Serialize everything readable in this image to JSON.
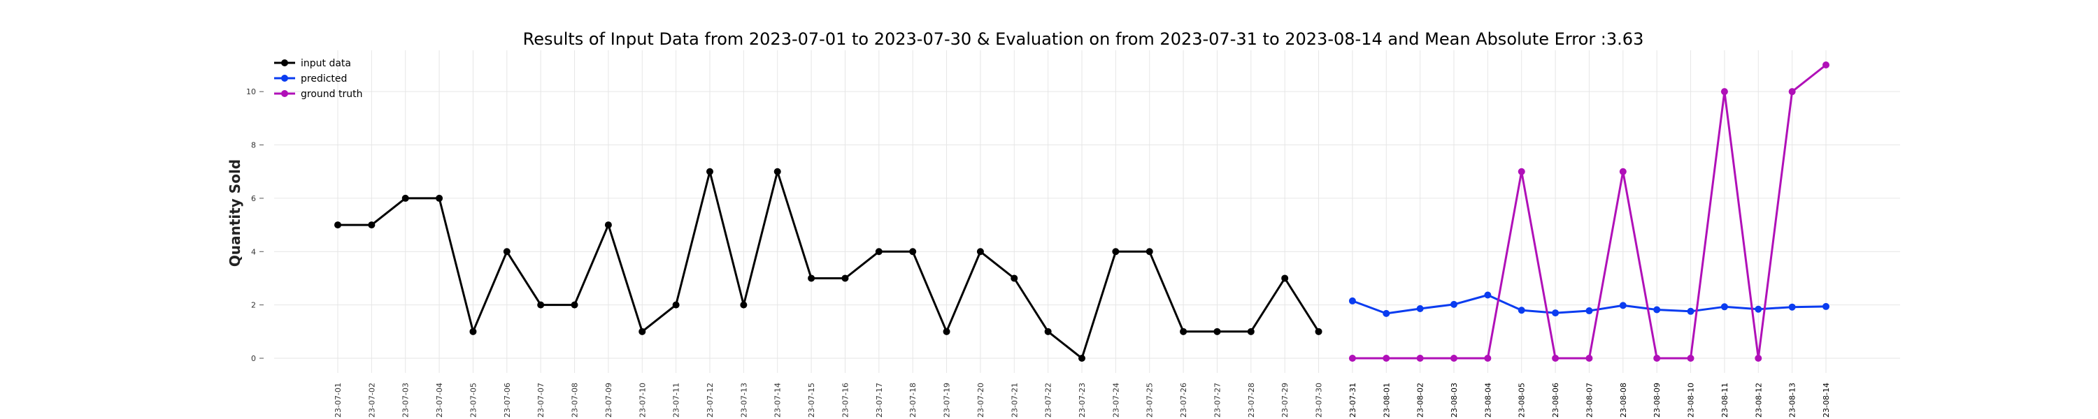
{
  "chart_data": {
    "type": "line",
    "title": "Results of Input Data from 2023-07-01 to 2023-07-30 & Evaluation on from 2023-07-31 to 2023-08-14 and Mean Absolute Error  :3.63",
    "xlabel": "",
    "ylabel": "Quantity Sold",
    "ylim": [
      -0.55,
      11.55
    ],
    "yticks": [
      0,
      2,
      4,
      6,
      8,
      10
    ],
    "ytick_labels": [
      "0",
      "2",
      "4",
      "6",
      "8",
      "10"
    ],
    "grid": true,
    "legend_position": "top-left",
    "x": [
      "2023-07-01",
      "2023-07-02",
      "2023-07-03",
      "2023-07-04",
      "2023-07-05",
      "2023-07-06",
      "2023-07-07",
      "2023-07-08",
      "2023-07-09",
      "2023-07-10",
      "2023-07-11",
      "2023-07-12",
      "2023-07-13",
      "2023-07-14",
      "2023-07-15",
      "2023-07-16",
      "2023-07-17",
      "2023-07-18",
      "2023-07-19",
      "2023-07-20",
      "2023-07-21",
      "2023-07-22",
      "2023-07-23",
      "2023-07-24",
      "2023-07-25",
      "2023-07-26",
      "2023-07-27",
      "2023-07-28",
      "2023-07-29",
      "2023-07-30",
      "2023-07-31",
      "2023-08-01",
      "2023-08-02",
      "2023-08-03",
      "2023-08-04",
      "2023-08-05",
      "2023-08-06",
      "2023-08-07",
      "2023-08-08",
      "2023-08-09",
      "2023-08-10",
      "2023-08-11",
      "2023-08-12",
      "2023-08-13",
      "2023-08-14"
    ],
    "xtick_labels": [
      "23-07-01",
      "23-07-02",
      "23-07-03",
      "23-07-04",
      "23-07-05",
      "23-07-06",
      "23-07-07",
      "23-07-08",
      "23-07-09",
      "23-07-10",
      "23-07-11",
      "23-07-12",
      "23-07-13",
      "23-07-14",
      "23-07-15",
      "23-07-16",
      "23-07-17",
      "23-07-18",
      "23-07-19",
      "23-07-20",
      "23-07-21",
      "23-07-22",
      "23-07-23",
      "23-07-24",
      "23-07-25",
      "23-07-26",
      "23-07-27",
      "23-07-28",
      "23-07-29",
      "23-07-30",
      "23-07-31",
      "23-08-01",
      "23-08-02",
      "23-08-03",
      "23-08-04",
      "23-08-05",
      "23-08-06",
      "23-08-07",
      "23-08-08",
      "23-08-09",
      "23-08-10",
      "23-08-11",
      "23-08-12",
      "23-08-13",
      "23-08-14"
    ],
    "series": [
      {
        "name": "input data",
        "color": "#000000",
        "x": [
          "2023-07-01",
          "2023-07-02",
          "2023-07-03",
          "2023-07-04",
          "2023-07-05",
          "2023-07-06",
          "2023-07-07",
          "2023-07-08",
          "2023-07-09",
          "2023-07-10",
          "2023-07-11",
          "2023-07-12",
          "2023-07-13",
          "2023-07-14",
          "2023-07-15",
          "2023-07-16",
          "2023-07-17",
          "2023-07-18",
          "2023-07-19",
          "2023-07-20",
          "2023-07-21",
          "2023-07-22",
          "2023-07-23",
          "2023-07-24",
          "2023-07-25",
          "2023-07-26",
          "2023-07-27",
          "2023-07-28",
          "2023-07-29",
          "2023-07-30"
        ],
        "values": [
          5,
          5,
          6,
          6,
          1,
          4,
          2,
          2,
          5,
          1,
          2,
          7,
          2,
          7,
          3,
          3,
          4,
          4,
          1,
          4,
          3,
          1,
          0,
          4,
          4,
          1,
          1,
          1,
          3,
          1
        ]
      },
      {
        "name": "predicted",
        "color": "#0a3cf0",
        "x": [
          "2023-07-31",
          "2023-08-01",
          "2023-08-02",
          "2023-08-03",
          "2023-08-04",
          "2023-08-05",
          "2023-08-06",
          "2023-08-07",
          "2023-08-08",
          "2023-08-09",
          "2023-08-10",
          "2023-08-11",
          "2023-08-12",
          "2023-08-13",
          "2023-08-14"
        ],
        "values": [
          2.15,
          1.68,
          1.86,
          2.02,
          2.37,
          1.8,
          1.7,
          1.78,
          1.98,
          1.82,
          1.76,
          1.93,
          1.84,
          1.92,
          1.94
        ]
      },
      {
        "name": "ground truth",
        "color": "#b010b8",
        "x": [
          "2023-07-31",
          "2023-08-01",
          "2023-08-02",
          "2023-08-03",
          "2023-08-04",
          "2023-08-05",
          "2023-08-06",
          "2023-08-07",
          "2023-08-08",
          "2023-08-09",
          "2023-08-10",
          "2023-08-11",
          "2023-08-12",
          "2023-08-13",
          "2023-08-14"
        ],
        "values": [
          0,
          0,
          0,
          0,
          0,
          7,
          0,
          0,
          7,
          0,
          0,
          10,
          0,
          10,
          11
        ]
      }
    ]
  }
}
